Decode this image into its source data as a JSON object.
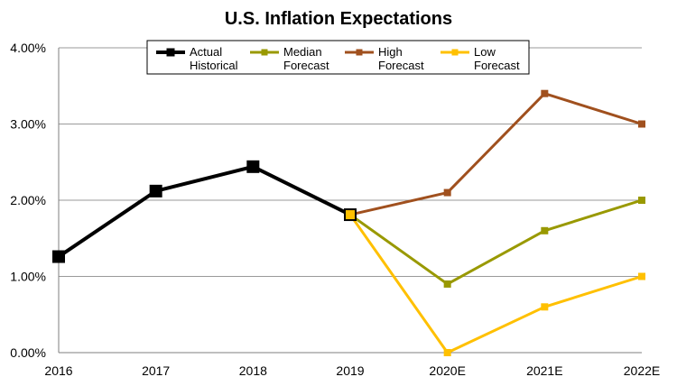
{
  "chart_data": {
    "type": "line",
    "title": "U.S. Inflation Expectations",
    "categories": [
      "2016",
      "2017",
      "2018",
      "2019",
      "2020E",
      "2021E",
      "2022E"
    ],
    "ylim": [
      0,
      4
    ],
    "y_ticks": [
      "0.00%",
      "1.00%",
      "2.00%",
      "3.00%",
      "4.00%"
    ],
    "grid": true,
    "legend_placement": "top-center",
    "series": [
      {
        "name_lines": [
          "Actual",
          "Historical"
        ],
        "color": "#000000",
        "values": [
          1.26,
          2.12,
          2.44,
          1.81,
          null,
          null,
          null
        ]
      },
      {
        "name_lines": [
          "Median",
          "Forecast"
        ],
        "color": "#999900",
        "values": [
          null,
          null,
          null,
          1.81,
          0.9,
          1.6,
          2.0
        ]
      },
      {
        "name_lines": [
          "High",
          "Forecast"
        ],
        "color": "#A0501E",
        "values": [
          null,
          null,
          null,
          1.81,
          2.1,
          3.4,
          3.0
        ]
      },
      {
        "name_lines": [
          "Low",
          "Forecast"
        ],
        "color": "#FFC000",
        "values": [
          null,
          null,
          null,
          1.81,
          0.0,
          0.6,
          1.0
        ]
      }
    ]
  }
}
